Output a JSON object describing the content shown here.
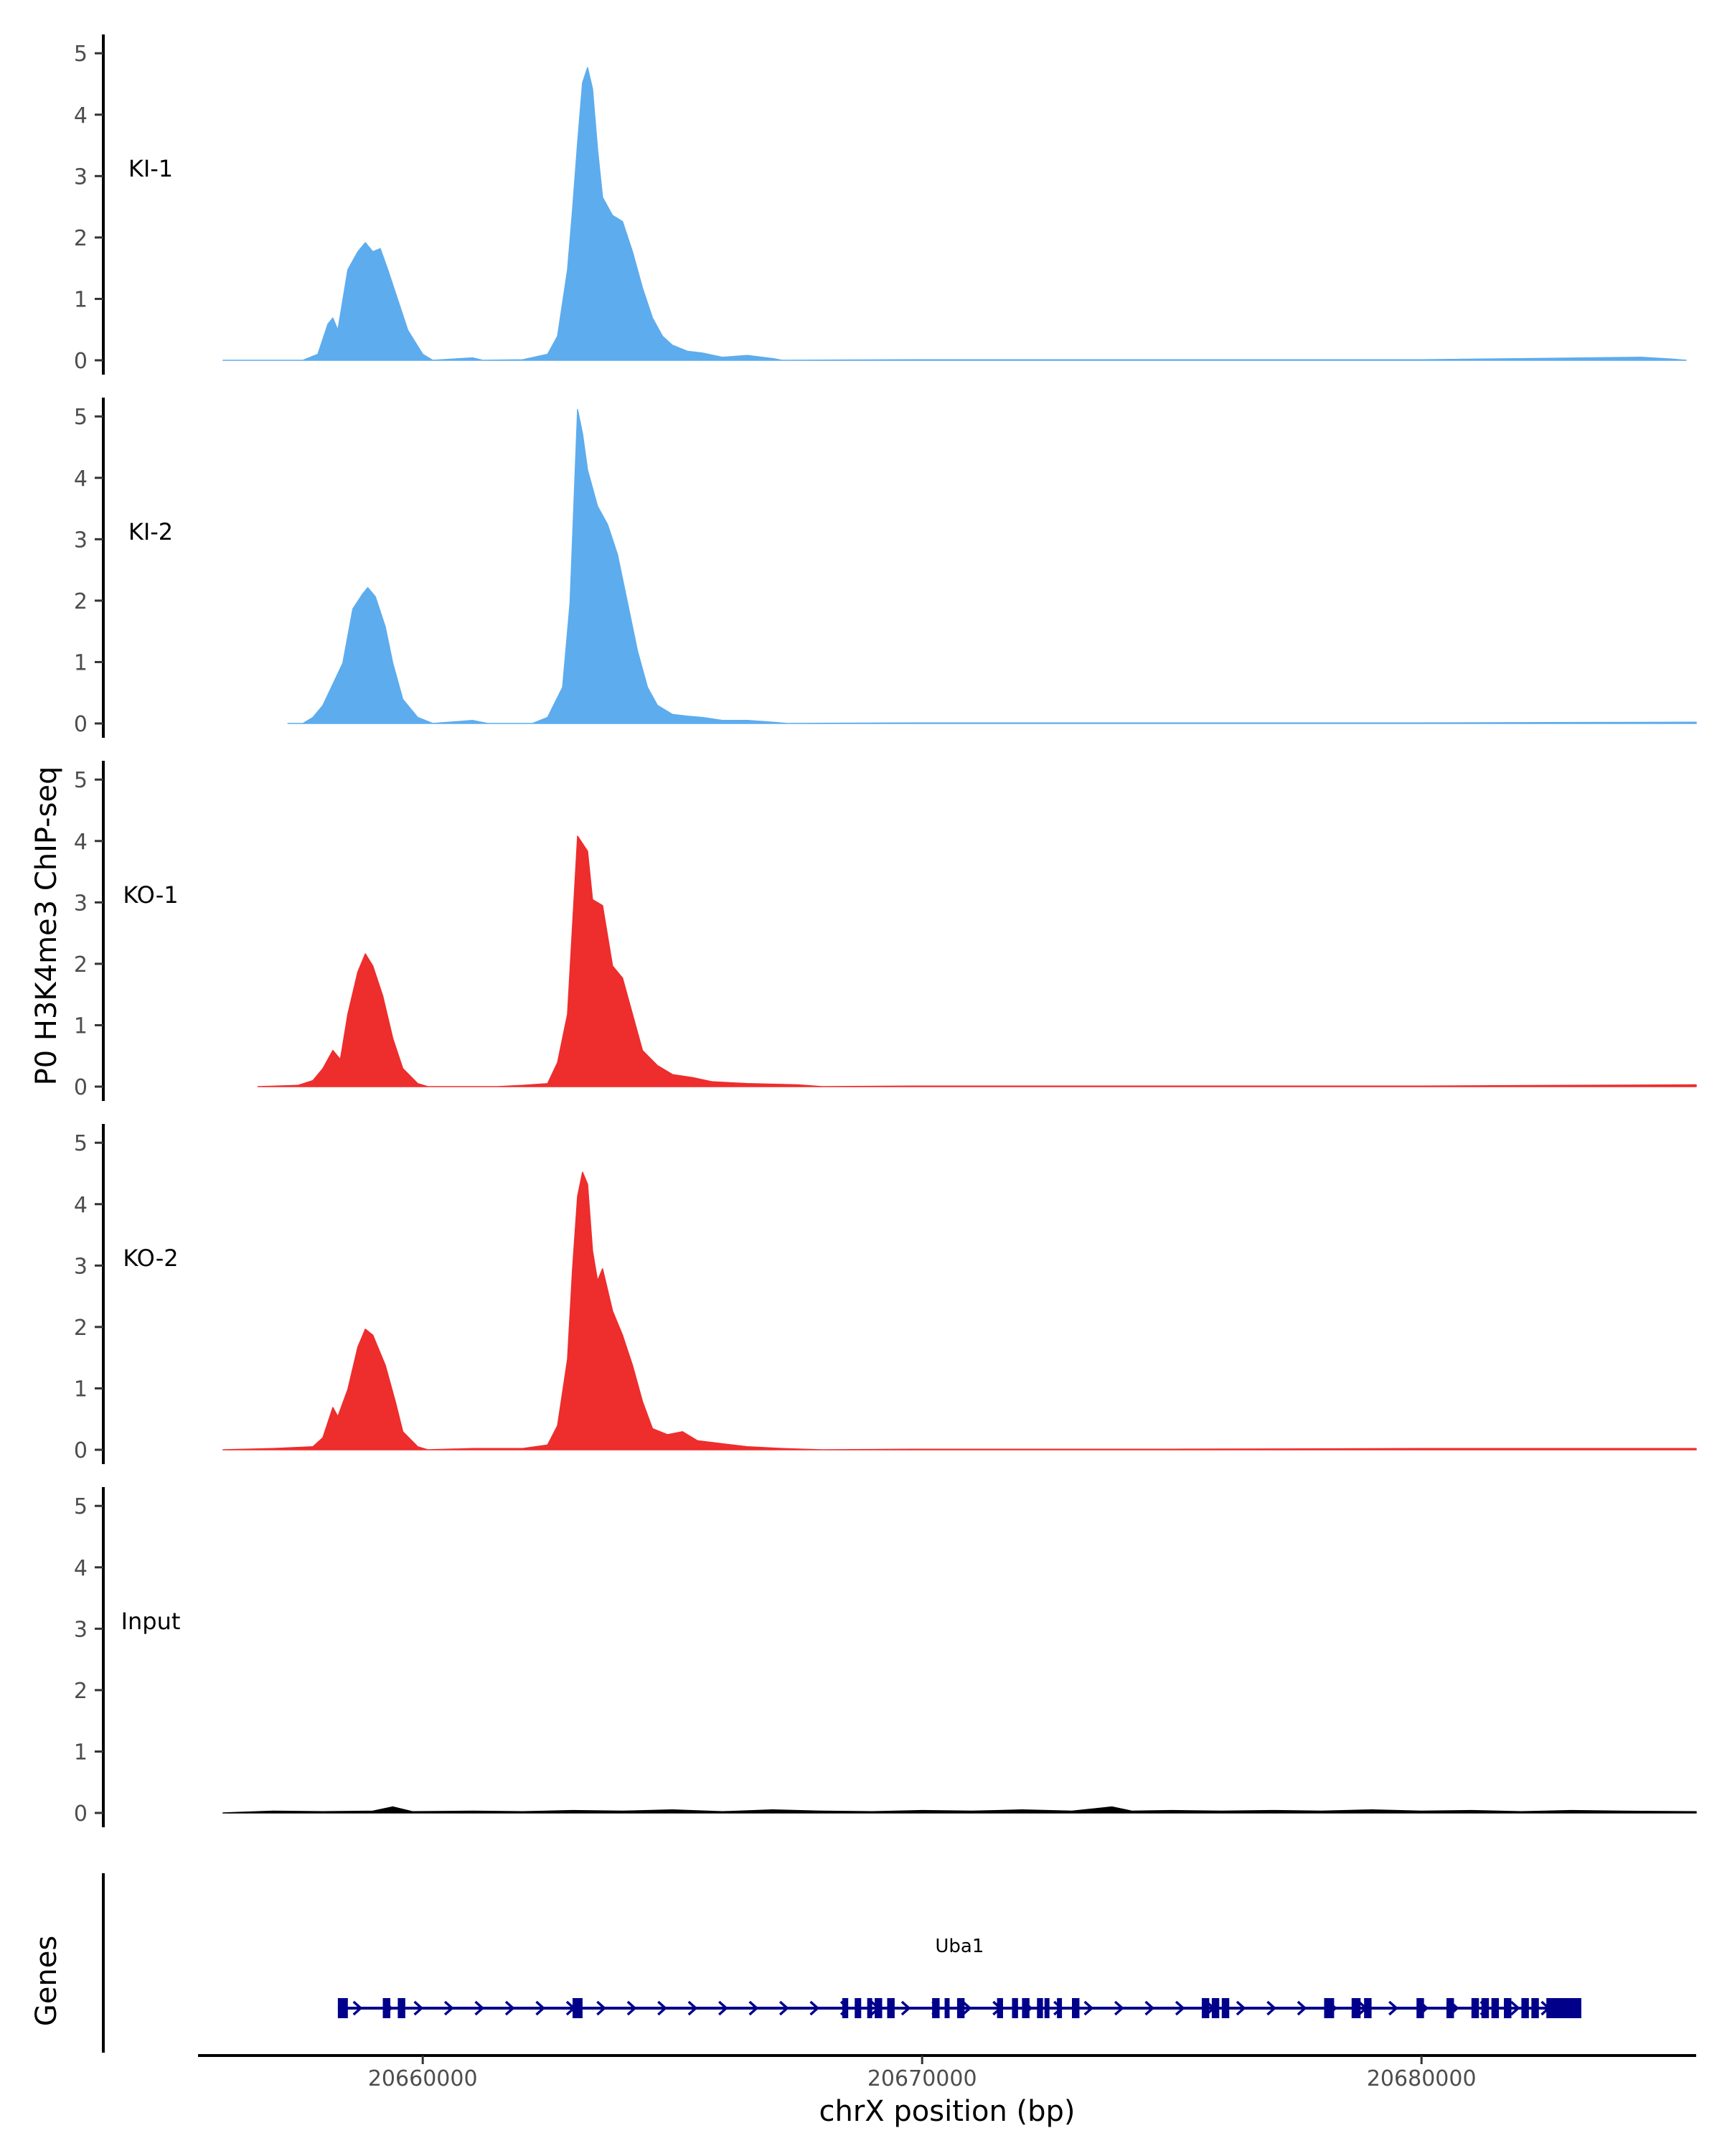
{
  "chart_data": {
    "type": "area",
    "ylabel": "P0 H3K4me3 ChIP-seq",
    "xlabel": "chrX position (bp)",
    "xlim": [
      20655500,
      20685500
    ],
    "ylim": [
      0,
      5.4
    ],
    "yticks": [
      0,
      1,
      2,
      3,
      4,
      5
    ],
    "xticks": [
      20660000,
      20670000,
      20680000
    ],
    "colors": {
      "KI": "#5dacee",
      "KO": "#ee2d2d",
      "Input": "#000000",
      "gene": "#00008b"
    },
    "tracks": [
      {
        "name": "KI-1",
        "color": "#5dacee",
        "points": [
          [
            20656000,
            0
          ],
          [
            20657600,
            0
          ],
          [
            20657900,
            0.1
          ],
          [
            20658100,
            0.6
          ],
          [
            20658200,
            0.7
          ],
          [
            20658300,
            0.5
          ],
          [
            20658500,
            1.5
          ],
          [
            20658700,
            1.8
          ],
          [
            20658850,
            1.95
          ],
          [
            20659000,
            1.8
          ],
          [
            20659150,
            1.85
          ],
          [
            20659300,
            1.5
          ],
          [
            20659500,
            1.0
          ],
          [
            20659700,
            0.5
          ],
          [
            20660000,
            0.1
          ],
          [
            20660200,
            0
          ],
          [
            20661000,
            0.04
          ],
          [
            20661200,
            0
          ],
          [
            20662000,
            0.01
          ],
          [
            20662500,
            0.1
          ],
          [
            20662700,
            0.4
          ],
          [
            20662900,
            1.5
          ],
          [
            20663000,
            2.5
          ],
          [
            20663100,
            3.6
          ],
          [
            20663200,
            4.6
          ],
          [
            20663300,
            4.85
          ],
          [
            20663400,
            4.5
          ],
          [
            20663500,
            3.5
          ],
          [
            20663600,
            2.7
          ],
          [
            20663800,
            2.4
          ],
          [
            20664000,
            2.3
          ],
          [
            20664200,
            1.8
          ],
          [
            20664400,
            1.2
          ],
          [
            20664600,
            0.7
          ],
          [
            20664800,
            0.4
          ],
          [
            20665000,
            0.25
          ],
          [
            20665300,
            0.15
          ],
          [
            20665600,
            0.12
          ],
          [
            20666000,
            0.05
          ],
          [
            20666500,
            0.08
          ],
          [
            20667000,
            0.03
          ],
          [
            20667200,
            0
          ],
          [
            20670000,
            0.01
          ],
          [
            20675000,
            0.01
          ],
          [
            20680000,
            0.01
          ],
          [
            20684400,
            0.05
          ],
          [
            20685000,
            0.02
          ],
          [
            20685300,
            0
          ]
        ]
      },
      {
        "name": "KI-2",
        "color": "#5dacee",
        "points": [
          [
            20657300,
            0
          ],
          [
            20657600,
            0
          ],
          [
            20657800,
            0.1
          ],
          [
            20658000,
            0.3
          ],
          [
            20658200,
            0.65
          ],
          [
            20658400,
            1.0
          ],
          [
            20658600,
            1.9
          ],
          [
            20658800,
            2.15
          ],
          [
            20658900,
            2.25
          ],
          [
            20659050,
            2.1
          ],
          [
            20659250,
            1.6
          ],
          [
            20659400,
            1.0
          ],
          [
            20659600,
            0.4
          ],
          [
            20659900,
            0.1
          ],
          [
            20660200,
            0
          ],
          [
            20661000,
            0.05
          ],
          [
            20661300,
            0
          ],
          [
            20662200,
            0
          ],
          [
            20662500,
            0.1
          ],
          [
            20662800,
            0.6
          ],
          [
            20662950,
            2.0
          ],
          [
            20663100,
            5.2
          ],
          [
            20663200,
            4.8
          ],
          [
            20663300,
            4.2
          ],
          [
            20663500,
            3.6
          ],
          [
            20663700,
            3.3
          ],
          [
            20663900,
            2.8
          ],
          [
            20664100,
            2.0
          ],
          [
            20664300,
            1.2
          ],
          [
            20664500,
            0.6
          ],
          [
            20664700,
            0.3
          ],
          [
            20665000,
            0.15
          ],
          [
            20665300,
            0.12
          ],
          [
            20665600,
            0.1
          ],
          [
            20666000,
            0.05
          ],
          [
            20666500,
            0.05
          ],
          [
            20667000,
            0.02
          ],
          [
            20667300,
            0
          ],
          [
            20670000,
            0.01
          ],
          [
            20675000,
            0.01
          ],
          [
            20680000,
            0.01
          ],
          [
            20685500,
            0.02
          ]
        ]
      },
      {
        "name": "KO-1",
        "color": "#ee2d2d",
        "points": [
          [
            20656700,
            0
          ],
          [
            20657500,
            0.02
          ],
          [
            20657800,
            0.1
          ],
          [
            20658000,
            0.3
          ],
          [
            20658200,
            0.6
          ],
          [
            20658350,
            0.45
          ],
          [
            20658500,
            1.2
          ],
          [
            20658700,
            1.9
          ],
          [
            20658850,
            2.2
          ],
          [
            20659000,
            2.0
          ],
          [
            20659200,
            1.5
          ],
          [
            20659400,
            0.8
          ],
          [
            20659600,
            0.3
          ],
          [
            20659900,
            0.05
          ],
          [
            20660100,
            0
          ],
          [
            20661500,
            0
          ],
          [
            20662000,
            0.02
          ],
          [
            20662500,
            0.05
          ],
          [
            20662700,
            0.4
          ],
          [
            20662900,
            1.2
          ],
          [
            20663100,
            4.15
          ],
          [
            20663300,
            3.9
          ],
          [
            20663400,
            3.1
          ],
          [
            20663600,
            3.0
          ],
          [
            20663800,
            2.0
          ],
          [
            20664000,
            1.8
          ],
          [
            20664200,
            1.2
          ],
          [
            20664400,
            0.6
          ],
          [
            20664700,
            0.35
          ],
          [
            20665000,
            0.2
          ],
          [
            20665400,
            0.15
          ],
          [
            20665800,
            0.08
          ],
          [
            20666500,
            0.05
          ],
          [
            20667500,
            0.03
          ],
          [
            20668000,
            0
          ],
          [
            20670000,
            0.01
          ],
          [
            20675000,
            0.01
          ],
          [
            20680000,
            0.01
          ],
          [
            20685500,
            0.03
          ]
        ]
      },
      {
        "name": "KO-2",
        "color": "#ee2d2d",
        "points": [
          [
            20656000,
            0
          ],
          [
            20657000,
            0.02
          ],
          [
            20657800,
            0.05
          ],
          [
            20658000,
            0.2
          ],
          [
            20658200,
            0.7
          ],
          [
            20658300,
            0.55
          ],
          [
            20658500,
            1.0
          ],
          [
            20658700,
            1.7
          ],
          [
            20658850,
            2.0
          ],
          [
            20659000,
            1.9
          ],
          [
            20659250,
            1.4
          ],
          [
            20659450,
            0.8
          ],
          [
            20659600,
            0.3
          ],
          [
            20659900,
            0.05
          ],
          [
            20660100,
            0
          ],
          [
            20661000,
            0.02
          ],
          [
            20662000,
            0.02
          ],
          [
            20662500,
            0.08
          ],
          [
            20662700,
            0.4
          ],
          [
            20662900,
            1.5
          ],
          [
            20663000,
            3.0
          ],
          [
            20663100,
            4.2
          ],
          [
            20663200,
            4.6
          ],
          [
            20663300,
            4.4
          ],
          [
            20663400,
            3.3
          ],
          [
            20663500,
            2.8
          ],
          [
            20663600,
            3.0
          ],
          [
            20663800,
            2.3
          ],
          [
            20664000,
            1.9
          ],
          [
            20664200,
            1.4
          ],
          [
            20664400,
            0.8
          ],
          [
            20664600,
            0.35
          ],
          [
            20664900,
            0.25
          ],
          [
            20665200,
            0.3
          ],
          [
            20665500,
            0.15
          ],
          [
            20666000,
            0.1
          ],
          [
            20666500,
            0.05
          ],
          [
            20667200,
            0.02
          ],
          [
            20668000,
            0
          ],
          [
            20670000,
            0.01
          ],
          [
            20675000,
            0.01
          ],
          [
            20680000,
            0.02
          ],
          [
            20685500,
            0.02
          ]
        ]
      },
      {
        "name": "Input",
        "color": "#000000",
        "points": [
          [
            20656000,
            0
          ],
          [
            20657000,
            0.03
          ],
          [
            20658000,
            0.02
          ],
          [
            20659000,
            0.03
          ],
          [
            20659400,
            0.1
          ],
          [
            20659800,
            0.02
          ],
          [
            20661000,
            0.03
          ],
          [
            20662000,
            0.02
          ],
          [
            20663000,
            0.04
          ],
          [
            20664000,
            0.03
          ],
          [
            20665000,
            0.05
          ],
          [
            20666000,
            0.02
          ],
          [
            20667000,
            0.05
          ],
          [
            20668000,
            0.03
          ],
          [
            20669000,
            0.02
          ],
          [
            20670000,
            0.04
          ],
          [
            20671000,
            0.03
          ],
          [
            20672000,
            0.05
          ],
          [
            20673000,
            0.03
          ],
          [
            20673800,
            0.1
          ],
          [
            20674200,
            0.03
          ],
          [
            20675000,
            0.04
          ],
          [
            20676000,
            0.03
          ],
          [
            20677000,
            0.04
          ],
          [
            20678000,
            0.03
          ],
          [
            20679000,
            0.05
          ],
          [
            20680000,
            0.03
          ],
          [
            20681000,
            0.04
          ],
          [
            20682000,
            0.02
          ],
          [
            20683000,
            0.04
          ],
          [
            20684000,
            0.03
          ],
          [
            20685500,
            0.02
          ]
        ]
      }
    ],
    "genes_label": "Genes",
    "gene": {
      "name": "Uba1",
      "start": 20658300,
      "end": 20683200,
      "exons": [
        [
          20658300,
          20658500
        ],
        [
          20659200,
          20659350
        ],
        [
          20659500,
          20659650
        ],
        [
          20663000,
          20663200
        ],
        [
          20668400,
          20668520
        ],
        [
          20668650,
          20668780
        ],
        [
          20668900,
          20669000
        ],
        [
          20669050,
          20669200
        ],
        [
          20669300,
          20669450
        ],
        [
          20670200,
          20670350
        ],
        [
          20670450,
          20670550
        ],
        [
          20670700,
          20670850
        ],
        [
          20671500,
          20671620
        ],
        [
          20671800,
          20671920
        ],
        [
          20672000,
          20672150
        ],
        [
          20672300,
          20672420
        ],
        [
          20672450,
          20672550
        ],
        [
          20672700,
          20672800
        ],
        [
          20673000,
          20673150
        ],
        [
          20675600,
          20675750
        ],
        [
          20675800,
          20675950
        ],
        [
          20676000,
          20676150
        ],
        [
          20678050,
          20678250
        ],
        [
          20678600,
          20678780
        ],
        [
          20678850,
          20679000
        ],
        [
          20679900,
          20680050
        ],
        [
          20680500,
          20680650
        ],
        [
          20681000,
          20681150
        ],
        [
          20681200,
          20681350
        ],
        [
          20681400,
          20681550
        ],
        [
          20681650,
          20681800
        ],
        [
          20682000,
          20682150
        ],
        [
          20682200,
          20682350
        ],
        [
          20682500,
          20683200
        ]
      ]
    }
  }
}
